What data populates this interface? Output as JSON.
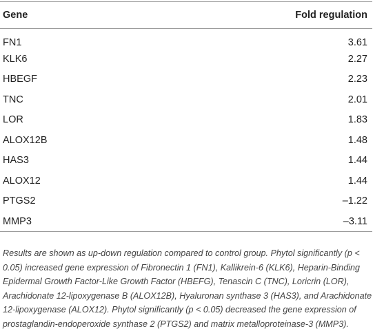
{
  "table": {
    "header": [
      "Gene",
      "Fold regulation"
    ],
    "rows": [
      [
        "FN1",
        "3.61"
      ],
      [
        "KLK6",
        "2.27"
      ],
      [
        "HBEGF",
        "2.23"
      ],
      [
        "TNC",
        "2.01"
      ],
      [
        "LOR",
        "1.83"
      ],
      [
        "ALOX12B",
        "1.48"
      ],
      [
        "HAS3",
        "1.44"
      ],
      [
        "ALOX12",
        "1.44"
      ],
      [
        "PTGS2",
        "–1.22"
      ],
      [
        "MMP3",
        "–3.11"
      ]
    ]
  },
  "footnote": "Results are shown as up-down regulation compared to control group. Phytol significantly (p < 0.05) increased gene expression of Fibronectin 1 (FN1), Kallikrein-6 (KLK6), Heparin-Binding Epidermal Growth Factor-Like Growth Factor (HBEFG), Tenascin C (TNC), Loricrin (LOR), Arachidonate 12-lipoxygenase B (ALOX12B), Hyaluronan synthase 3 (HAS3), and Arachidonate 12-lipoxygenase (ALOX12). Phytol significantly (p < 0.05) decreased the gene expression of prostaglandin-endoperoxide synthase 2 (PTGS2) and matrix metalloproteinase-3 (MMP3)."
}
